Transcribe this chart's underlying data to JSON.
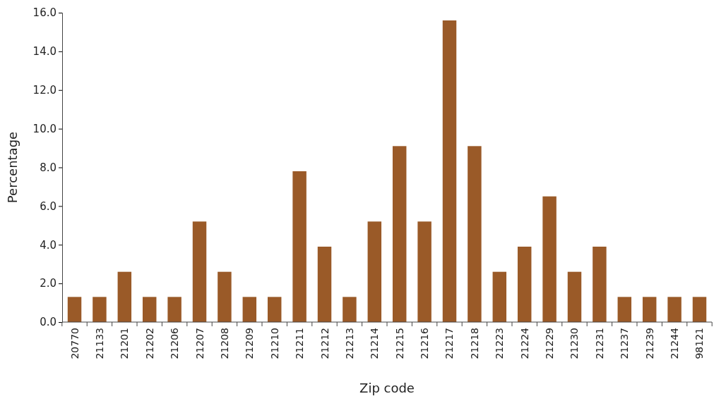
{
  "chart_data": {
    "type": "bar",
    "xlabel": "Zip code",
    "ylabel": "Percentage",
    "categories": [
      "20770",
      "21133",
      "21201",
      "21202",
      "21206",
      "21207",
      "21208",
      "21209",
      "21210",
      "21211",
      "21212",
      "21213",
      "21214",
      "21215",
      "21216",
      "21217",
      "21218",
      "21223",
      "21224",
      "21229",
      "21230",
      "21231",
      "21237",
      "21239",
      "21244",
      "98121"
    ],
    "values": [
      1.3,
      1.3,
      2.6,
      1.3,
      1.3,
      5.2,
      2.6,
      1.3,
      1.3,
      7.8,
      3.9,
      1.3,
      5.2,
      9.1,
      5.2,
      15.6,
      9.1,
      2.6,
      3.9,
      6.5,
      2.6,
      3.9,
      1.3,
      1.3,
      1.3,
      1.3
    ],
    "color": "#9a5a28",
    "ylim": [
      0,
      16
    ],
    "yticks": [
      {
        "value": 0,
        "label": "0.0"
      },
      {
        "value": 2,
        "label": "2.0"
      },
      {
        "value": 4,
        "label": "4.0"
      },
      {
        "value": 6,
        "label": "6.0"
      },
      {
        "value": 8,
        "label": "8.0"
      },
      {
        "value": 10,
        "label": "10.0"
      },
      {
        "value": 12,
        "label": "12.0"
      },
      {
        "value": 14,
        "label": "14.0"
      },
      {
        "value": 16,
        "label": "16.0"
      }
    ],
    "grid": false
  }
}
